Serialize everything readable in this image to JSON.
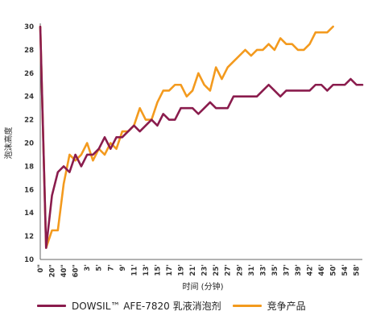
{
  "chart_data": {
    "type": "line",
    "title": "",
    "xlabel": "时间 (分钟)",
    "ylabel": "泡沫高度",
    "ylim": [
      10,
      30
    ],
    "yticks": [
      10,
      12,
      14,
      16,
      18,
      20,
      22,
      24,
      26,
      28,
      30
    ],
    "grid": false,
    "legend_position": "bottom",
    "x_ticks": [
      {
        "i": 0,
        "label": "0\""
      },
      {
        "i": 2,
        "label": "20\""
      },
      {
        "i": 4,
        "label": "40\""
      },
      {
        "i": 6,
        "label": "60\""
      },
      {
        "i": 8,
        "label": "3'"
      },
      {
        "i": 10,
        "label": "5'"
      },
      {
        "i": 12,
        "label": "7'"
      },
      {
        "i": 14,
        "label": "9'"
      },
      {
        "i": 16,
        "label": "11'"
      },
      {
        "i": 18,
        "label": "13'"
      },
      {
        "i": 20,
        "label": "15'"
      },
      {
        "i": 22,
        "label": "17'"
      },
      {
        "i": 24,
        "label": "19'"
      },
      {
        "i": 26,
        "label": "21'"
      },
      {
        "i": 28,
        "label": "23'"
      },
      {
        "i": 30,
        "label": "25'"
      },
      {
        "i": 32,
        "label": "27'"
      },
      {
        "i": 34,
        "label": "29'"
      },
      {
        "i": 36,
        "label": "31'"
      },
      {
        "i": 38,
        "label": "33'"
      },
      {
        "i": 40,
        "label": "35'"
      },
      {
        "i": 42,
        "label": "37'"
      },
      {
        "i": 44,
        "label": "39'"
      },
      {
        "i": 46,
        "label": "42'"
      },
      {
        "i": 48,
        "label": "46'"
      },
      {
        "i": 50,
        "label": "50'"
      },
      {
        "i": 52,
        "label": "54'"
      },
      {
        "i": 54,
        "label": "58'"
      }
    ],
    "series": [
      {
        "name": "DOWSIL™ AFE-7820 乳液消泡剂",
        "color": "#8a1c4d",
        "values": [
          30,
          11,
          15.5,
          17.5,
          18,
          17.5,
          19,
          18,
          19,
          19,
          19.5,
          20.5,
          19.5,
          20.5,
          20.5,
          21,
          21.5,
          21,
          21.5,
          22,
          21.5,
          22.5,
          22,
          22,
          23,
          23,
          23,
          22.5,
          23,
          23.5,
          23,
          23,
          23,
          24,
          24,
          24,
          24,
          24,
          24.5,
          25,
          24.5,
          24,
          24.5,
          24.5,
          24.5,
          24.5,
          24.5,
          25,
          25,
          24.5,
          25,
          25,
          25,
          25.5,
          25,
          25
        ]
      },
      {
        "name": "竞争产品",
        "color": "#f39a1e",
        "values": [
          30,
          11,
          12.5,
          12.5,
          16.5,
          19,
          18.5,
          19,
          20,
          18.5,
          19.5,
          19,
          20,
          19.5,
          21,
          21,
          21.5,
          23,
          22,
          22,
          23.5,
          24.5,
          24.5,
          25,
          25,
          24,
          24.5,
          26,
          25,
          24.5,
          26.5,
          25.5,
          26.5,
          27,
          27.5,
          28,
          27.5,
          28,
          28,
          28.5,
          28,
          29,
          28.5,
          28.5,
          28,
          28,
          28.5,
          29.5,
          29.5,
          29.5,
          30
        ]
      }
    ]
  }
}
